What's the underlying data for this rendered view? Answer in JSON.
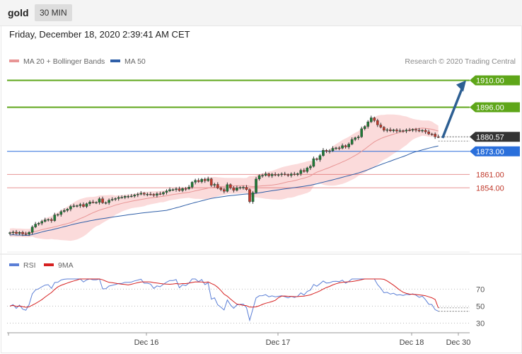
{
  "header": {
    "symbol": "gold",
    "timeframe": "30 MIN",
    "datetime": "Friday, December 18, 2020 2:39:41 AM CET"
  },
  "colors": {
    "up_candle": "#1f7a36",
    "down_candle": "#c0392b",
    "ma20": "#e89595",
    "ma50": "#2f5fa8",
    "bollinger_fill": "#fbd7d7",
    "resistance": "#5ea619",
    "support_blue": "#2a6fdb",
    "support_red": "#e07070",
    "price_tag": "#333333",
    "arrow": "#2d5f93",
    "rsi": "#5b7fd6",
    "rsi_ma": "#d62020"
  },
  "chart_data": [
    {
      "type": "candlestick",
      "title": "",
      "legend": [
        {
          "name": "MA 20 + Bollinger Bands",
          "color": "#e89595"
        },
        {
          "name": "MA 50",
          "color": "#2f5fa8"
        }
      ],
      "watermark": "Research © 2020 Trading Central",
      "ylim": [
        1822,
        1915
      ],
      "x_labels": [
        "Dec 16",
        "Dec 17",
        "Dec 18",
        "Dec 30"
      ],
      "close_series": [
        1830.6,
        1830.9,
        1830.2,
        1830.8,
        1830.0,
        1829.8,
        1830.8,
        1833.6,
        1835.1,
        1835.6,
        1836.5,
        1837.3,
        1837.5,
        1836.9,
        1839.9,
        1840.1,
        1841.6,
        1842.2,
        1842.9,
        1844.3,
        1844.6,
        1844.7,
        1845.3,
        1844.3,
        1845.7,
        1846.6,
        1846.4,
        1846.4,
        1848.3,
        1846.2,
        1846.3,
        1847.6,
        1848.0,
        1848.4,
        1849.0,
        1849.0,
        1849.6,
        1849.6,
        1849.7,
        1850.3,
        1850.7,
        1851.2,
        1850.7,
        1850.7,
        1850.6,
        1850.1,
        1850.9,
        1850.8,
        1851.6,
        1852.4,
        1853.1,
        1853.1,
        1853.5,
        1852.6,
        1853.6,
        1853.5,
        1854.4,
        1856.9,
        1857.9,
        1857.2,
        1858.5,
        1857.7,
        1858.7,
        1855.3,
        1855.8,
        1853.9,
        1853.1,
        1852.2,
        1855.7,
        1854.0,
        1852.7,
        1854.0,
        1854.2,
        1854.3,
        1853.1,
        1846.8,
        1851.5,
        1858.6,
        1860.4,
        1860.5,
        1861.3,
        1860.3,
        1861.0,
        1860.6,
        1860.9,
        1861.2,
        1860.9,
        1860.5,
        1861.2,
        1860.9,
        1861.4,
        1863.1,
        1862.5,
        1864.4,
        1865.2,
        1869.2,
        1868.7,
        1870.8,
        1873.6,
        1873.0,
        1873.3,
        1874.6,
        1874.8,
        1874.7,
        1876.0,
        1875.3,
        1876.8,
        1879.2,
        1880.1,
        1880.6,
        1884.8,
        1886.0,
        1888.4,
        1890.5,
        1889.1,
        1886.8,
        1885.6,
        1884.0,
        1884.3,
        1883.7,
        1884.2,
        1883.6,
        1883.8,
        1883.6,
        1884.1,
        1884.0,
        1884.4,
        1884.1,
        1883.6,
        1884.0,
        1883.2,
        1882.1,
        1882.0,
        1880.6,
        1880.57
      ],
      "candles_count": 133,
      "bars_per_day": 48,
      "last_price": "1880.57",
      "levels": [
        {
          "price": "1910.00",
          "kind": "resistance",
          "color": "#5ea619"
        },
        {
          "price": "1896.00",
          "kind": "resistance",
          "color": "#5ea619"
        },
        {
          "price": "1873.00",
          "kind": "support",
          "color": "#2a6fdb"
        },
        {
          "price": "1861.00",
          "kind": "support",
          "color": "#e07070"
        },
        {
          "price": "1854.00",
          "kind": "support",
          "color": "#e07070"
        }
      ],
      "forecast_arrow": {
        "from_price": 1880,
        "to_price": 1910
      }
    },
    {
      "type": "line",
      "title": "",
      "legend": [
        {
          "name": "RSI",
          "color": "#5b7fd6"
        },
        {
          "name": "9MA",
          "color": "#d62020"
        }
      ],
      "ylim": [
        22,
        82
      ],
      "yticks": [
        "70",
        "50",
        "30"
      ],
      "rsi_last": 44,
      "rsi_ma_last": 48
    }
  ]
}
